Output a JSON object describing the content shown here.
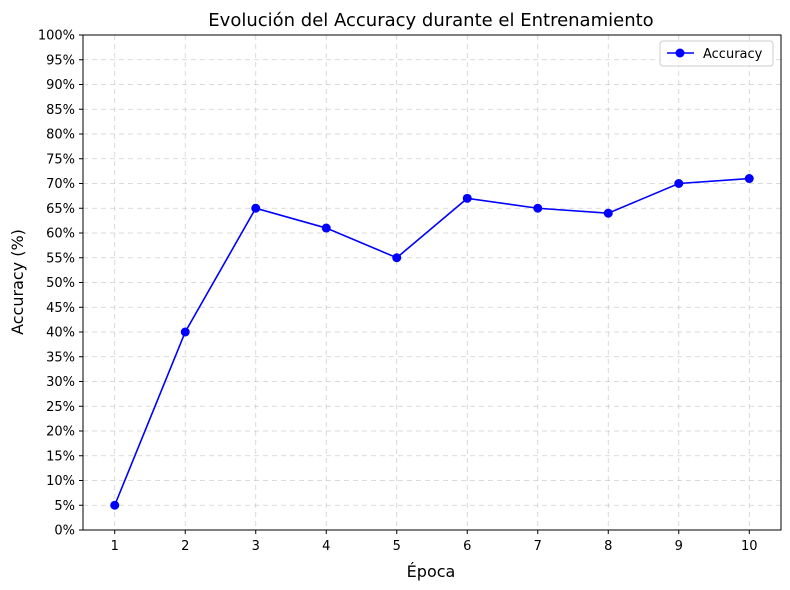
{
  "chart_data": {
    "type": "line",
    "title": "Evolución del Accuracy durante el Entrenamiento",
    "xlabel": "Época",
    "ylabel": "Accuracy (%)",
    "x": [
      1,
      2,
      3,
      4,
      5,
      6,
      7,
      8,
      9,
      10
    ],
    "x_tick_labels": [
      "1",
      "2",
      "3",
      "4",
      "5",
      "6",
      "7",
      "8",
      "9",
      "10"
    ],
    "y_tick_labels": [
      "0%",
      "5%",
      "10%",
      "15%",
      "20%",
      "25%",
      "30%",
      "35%",
      "40%",
      "45%",
      "50%",
      "55%",
      "60%",
      "65%",
      "70%",
      "75%",
      "80%",
      "85%",
      "90%",
      "95%",
      "100%"
    ],
    "ylim": [
      0,
      100
    ],
    "xlim": [
      0.55,
      10.45
    ],
    "grid": true,
    "legend_position": "top-right",
    "series": [
      {
        "name": "Accuracy",
        "color": "#0000ff",
        "marker": "circle",
        "values": [
          5,
          40,
          65,
          61,
          55,
          67,
          65,
          64,
          70,
          71
        ]
      }
    ]
  }
}
